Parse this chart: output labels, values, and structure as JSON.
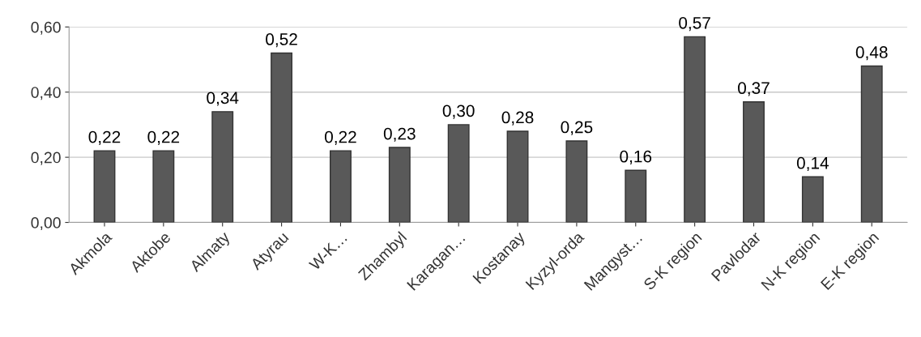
{
  "chart_data": {
    "type": "bar",
    "categories": [
      "Akmola",
      "Aktobe",
      "Almaty",
      "Atyrau",
      "W-K…",
      "Zhambyl",
      "Karagan…",
      "Kostanay",
      "Kyzyl-orda",
      "Mangyst…",
      "S-K region",
      "Pavlodar",
      "N-K region",
      "E-K region"
    ],
    "values": [
      0.22,
      0.22,
      0.34,
      0.52,
      0.22,
      0.23,
      0.3,
      0.28,
      0.25,
      0.16,
      0.57,
      0.37,
      0.14,
      0.48
    ],
    "value_labels": [
      "0,22",
      "0,22",
      "0,34",
      "0,52",
      "0,22",
      "0,23",
      "0,30",
      "0,28",
      "0,25",
      "0,16",
      "0,57",
      "0,37",
      "0,14",
      "0,48"
    ],
    "color": "#595959",
    "ylim": [
      0,
      0.6
    ],
    "yticks": [
      {
        "value": 0,
        "label": "0,00"
      },
      {
        "value": 0.2,
        "label": "0,20"
      },
      {
        "value": 0.4,
        "label": "0,40"
      },
      {
        "value": 0.6,
        "label": "0,60"
      }
    ],
    "grid": "y",
    "legend": false
  }
}
